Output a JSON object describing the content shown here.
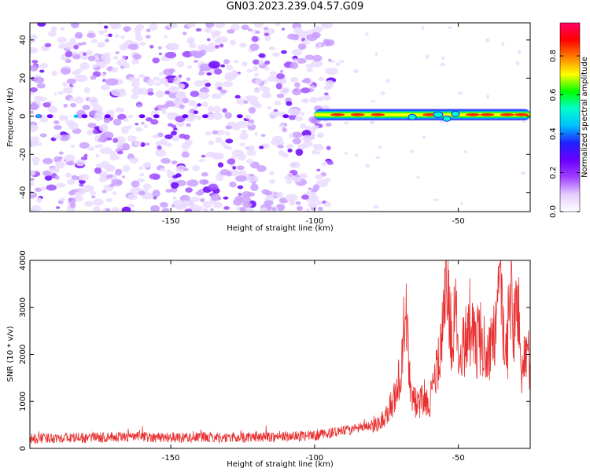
{
  "title": "GN03.2023.239.04.57.G09",
  "chart_data": [
    {
      "type": "heatmap",
      "xlabel": "Height of straight line (km)",
      "ylabel": "Frequency (Hz)",
      "xlim": [
        -199,
        -25
      ],
      "ylim": [
        -50,
        49
      ],
      "xticks": [
        -150,
        -100,
        -50
      ],
      "yticks": [
        -40,
        -20,
        0,
        20,
        40
      ],
      "colorbar": {
        "label": "Normalized spectral amplitude",
        "range": [
          0,
          0.97
        ],
        "ticks": [
          0,
          0.2,
          0.4,
          0.6,
          0.8
        ],
        "colormap": [
          "#ffffff",
          "#e6ccff",
          "#a040ff",
          "#6a00ff",
          "#2020ff",
          "#00bfff",
          "#00ffcc",
          "#00ff00",
          "#ffff00",
          "#ff8000",
          "#ff0000",
          "#ff0066"
        ]
      },
      "features": {
        "noise_region_x": [
          -199,
          -97
        ],
        "carrier_frequency_hz": 0,
        "strong_carrier_x": [
          -100,
          -25
        ],
        "strong_carrier_amplitude": 0.8
      }
    },
    {
      "type": "line",
      "xlabel": "Height of straight line (km)",
      "ylabel": "SNR (10 * v/v)",
      "xlim": [
        -199,
        -25
      ],
      "ylim": [
        0,
        4000
      ],
      "xticks": [
        -150,
        -100,
        -50
      ],
      "yticks": [
        0,
        1000,
        2000,
        3000,
        4000
      ],
      "series": [
        {
          "color": "#e83030",
          "x": [
            -199,
            -190,
            -180,
            -170,
            -160,
            -150,
            -140,
            -130,
            -120,
            -110,
            -100,
            -95,
            -90,
            -85,
            -82,
            -79,
            -76,
            -74,
            -72,
            -70,
            -69,
            -68,
            -67,
            -66,
            -65,
            -64,
            -62,
            -60,
            -58,
            -56,
            -55,
            -54,
            -53,
            -52,
            -51,
            -50,
            -48,
            -46,
            -44,
            -42,
            -40,
            -38,
            -36,
            -35,
            -34,
            -33,
            -32,
            -31,
            -30,
            -29,
            -28,
            -27,
            -26,
            -25
          ],
          "y": [
            200,
            230,
            220,
            240,
            250,
            230,
            240,
            230,
            240,
            250,
            270,
            320,
            370,
            420,
            470,
            520,
            620,
            850,
            1100,
            1600,
            2400,
            2650,
            1600,
            1100,
            1000,
            900,
            1100,
            1000,
            1500,
            2100,
            2700,
            3850,
            2800,
            2200,
            2900,
            2000,
            2300,
            2700,
            2200,
            2400,
            2000,
            2200,
            2900,
            3300,
            2200,
            2000,
            3500,
            2600,
            2800,
            3100,
            1500,
            1900,
            2100,
            1800
          ]
        }
      ]
    }
  ]
}
